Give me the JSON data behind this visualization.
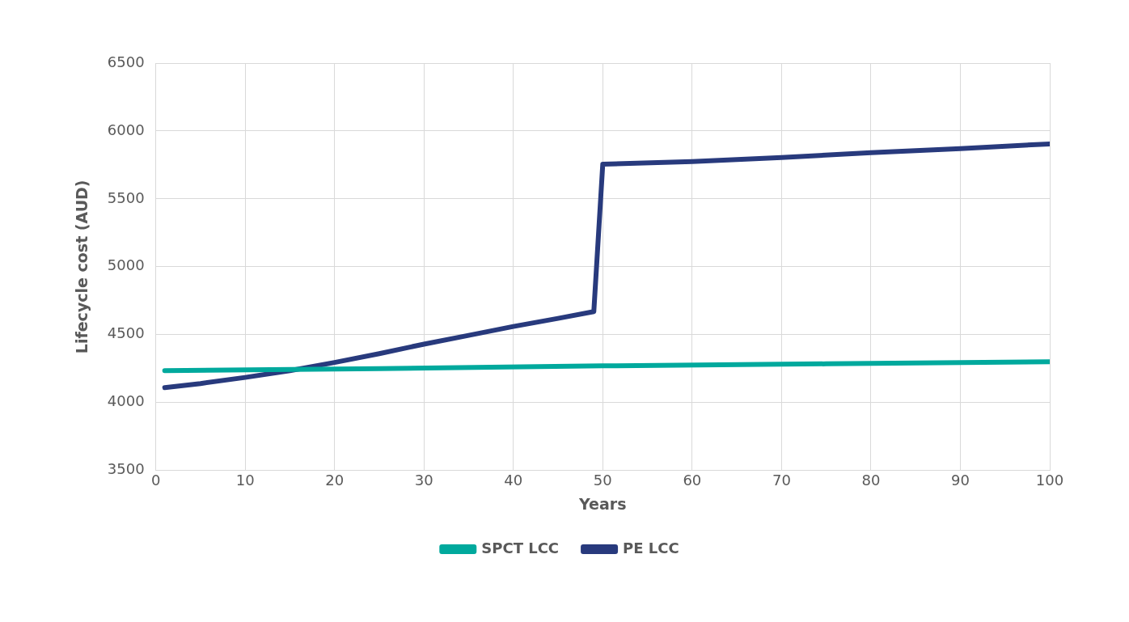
{
  "chart_data": {
    "type": "line",
    "xlabel": "Years",
    "ylabel": "Lifecycle cost (AUD)",
    "series": [
      {
        "name": "SPCT LCC",
        "color": "#00a99d",
        "x": [
          1,
          25,
          50,
          75,
          100
        ],
        "values": [
          4235,
          4250,
          4270,
          4285,
          4300
        ]
      },
      {
        "name": "PE LCC",
        "color": "#283a7d",
        "x": [
          1,
          5,
          10,
          15,
          20,
          25,
          30,
          35,
          40,
          45,
          49,
          50,
          60,
          70,
          80,
          90,
          100
        ],
        "values": [
          4110,
          4140,
          4185,
          4235,
          4295,
          4360,
          4430,
          4495,
          4560,
          4620,
          4670,
          5755,
          5775,
          5805,
          5840,
          5870,
          5905
        ]
      }
    ],
    "xlim": [
      0,
      100
    ],
    "xticks": [
      0,
      10,
      20,
      30,
      40,
      50,
      60,
      70,
      80,
      90,
      100
    ],
    "ylim": [
      3500,
      6500
    ],
    "yticks": [
      3500,
      4000,
      4500,
      5000,
      5500,
      6000,
      6500
    ],
    "grid": true,
    "legend": "bottom",
    "marker": "none",
    "line_style": "solid"
  }
}
